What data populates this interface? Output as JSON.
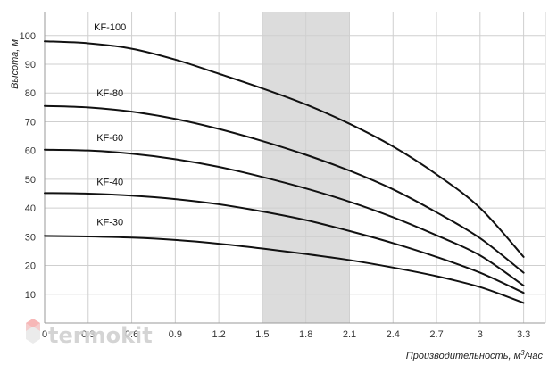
{
  "chart_data": {
    "type": "line",
    "title": "",
    "xlabel": "Производительность, м³/час",
    "ylabel": "Высота, м",
    "xlim": [
      0,
      3.45
    ],
    "ylim": [
      0,
      108
    ],
    "x_ticks": [
      0,
      0.3,
      0.6,
      0.9,
      1.2,
      1.5,
      1.8,
      2.1,
      2.4,
      2.7,
      3,
      3.3
    ],
    "x_tick_labels": [
      "0",
      "0.3",
      "0.6",
      "0.9",
      "1.2",
      "1.5",
      "1.8",
      "2.1",
      "2.4",
      "2.7",
      "3",
      "3.3"
    ],
    "y_ticks": [
      10,
      20,
      30,
      40,
      50,
      60,
      70,
      80,
      90,
      100
    ],
    "y_tick_labels": [
      "10",
      "20",
      "30",
      "40",
      "50",
      "60",
      "70",
      "80",
      "90",
      "100"
    ],
    "grid": true,
    "highlight_band": {
      "x_from": 1.5,
      "x_to": 2.1,
      "color": "#dcdcdc"
    },
    "line_color": "#111111",
    "series": [
      {
        "name": "KF-100",
        "label_at": [
          0.45,
          103
        ],
        "x": [
          0,
          0.3,
          0.6,
          0.9,
          1.2,
          1.5,
          1.8,
          2.1,
          2.4,
          2.7,
          3,
          3.3
        ],
        "y": [
          98,
          97.3,
          95.4,
          91.6,
          86.7,
          81.6,
          76,
          69.3,
          61.4,
          51.7,
          40,
          23
        ]
      },
      {
        "name": "KF-80",
        "label_at": [
          0.45,
          80
        ],
        "x": [
          0,
          0.3,
          0.6,
          0.9,
          1.2,
          1.5,
          1.8,
          2.1,
          2.4,
          2.7,
          3,
          3.3
        ],
        "y": [
          75.5,
          75,
          73.5,
          71,
          67.5,
          63.3,
          58.5,
          53,
          46.5,
          38.5,
          29.5,
          17.5
        ]
      },
      {
        "name": "KF-60",
        "label_at": [
          0.45,
          64.5
        ],
        "x": [
          0,
          0.3,
          0.6,
          0.9,
          1.2,
          1.5,
          1.8,
          2.1,
          2.4,
          2.7,
          3,
          3.3
        ],
        "y": [
          60.3,
          60,
          58.9,
          57,
          54.3,
          50.8,
          46.8,
          42.2,
          36.8,
          30.5,
          23.5,
          13
        ]
      },
      {
        "name": "KF-40",
        "label_at": [
          0.45,
          49.2
        ],
        "x": [
          0,
          0.3,
          0.6,
          0.9,
          1.2,
          1.5,
          1.8,
          2.1,
          2.4,
          2.7,
          3,
          3.3
        ],
        "y": [
          45.2,
          45,
          44.3,
          43.1,
          41.3,
          38.8,
          35.8,
          32,
          27.8,
          23,
          17.5,
          10.5
        ]
      },
      {
        "name": "KF-30",
        "label_at": [
          0.45,
          35.2
        ],
        "x": [
          0,
          0.3,
          0.6,
          0.9,
          1.2,
          1.5,
          1.8,
          2.1,
          2.4,
          2.7,
          3,
          3.3
        ],
        "y": [
          30.3,
          30.1,
          29.7,
          28.9,
          27.6,
          25.9,
          24,
          21.9,
          19.3,
          16.3,
          12.5,
          7
        ]
      }
    ]
  },
  "watermark": {
    "text": "termokit"
  }
}
